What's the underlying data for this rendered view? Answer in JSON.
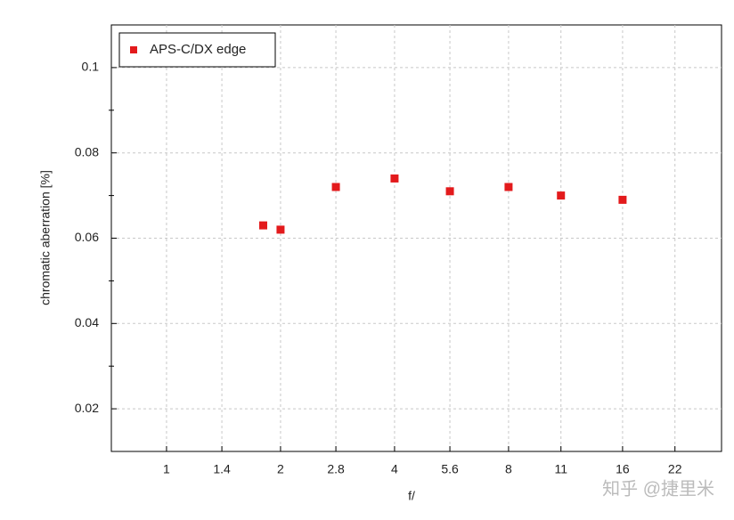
{
  "chart_data": {
    "type": "scatter",
    "xlabel": "f/",
    "ylabel": "chromatic aberration [%]",
    "x_scale": "log",
    "grid": true,
    "legend": "upper left",
    "xlim": [
      0.715,
      29.2
    ],
    "xticks": [
      1,
      1.4,
      2,
      2.8,
      4,
      5.6,
      8,
      11,
      16,
      22
    ],
    "ylim": [
      0.01,
      0.11
    ],
    "yticks": [
      0.02,
      0.04,
      0.06,
      0.08,
      0.1
    ],
    "yminor": [
      0.03,
      0.05,
      0.07,
      0.09
    ],
    "series": [
      {
        "name": "APS-C/DX edge",
        "color": "#e31a1c",
        "x": [
          1.8,
          2,
          2.8,
          4,
          5.6,
          8,
          11,
          16
        ],
        "values": [
          0.063,
          0.062,
          0.072,
          0.074,
          0.071,
          0.072,
          0.07,
          0.069
        ]
      }
    ],
    "watermark": "知乎 @捷里米"
  }
}
